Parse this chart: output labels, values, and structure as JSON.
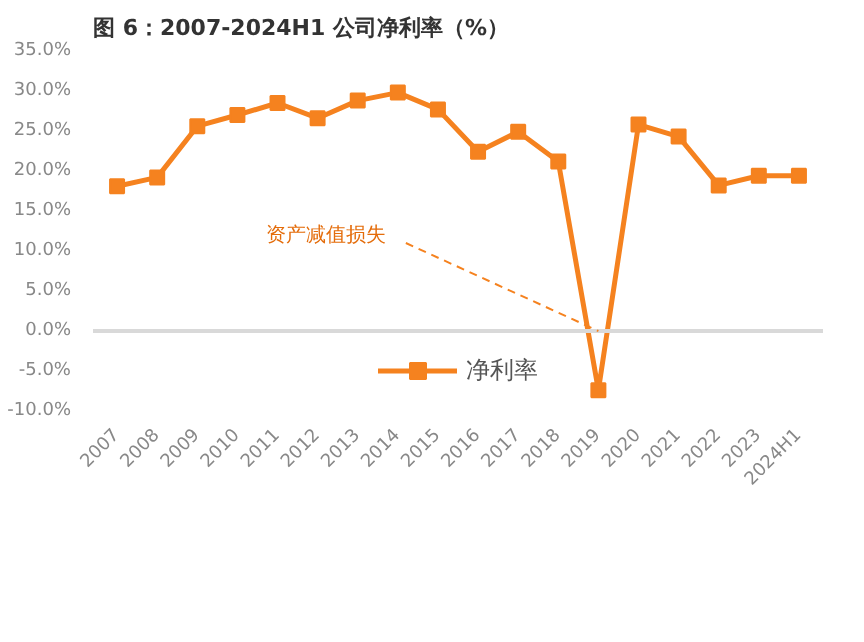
{
  "chart_data": {
    "type": "line",
    "title": "图 6：2007-2024H1 公司净利率（%）",
    "categories": [
      "2007",
      "2008",
      "2009",
      "2010",
      "2011",
      "2012",
      "2013",
      "2014",
      "2015",
      "2016",
      "2017",
      "2018",
      "2019",
      "2020",
      "2021",
      "2022",
      "2023",
      "2024H1"
    ],
    "series": [
      {
        "name": "净利率",
        "color": "#f5821f",
        "values": [
          18.1,
          19.2,
          25.6,
          27.0,
          28.5,
          26.6,
          28.8,
          29.8,
          27.7,
          22.4,
          24.9,
          21.2,
          -7.4,
          25.8,
          24.3,
          18.2,
          19.4,
          19.4
        ]
      }
    ],
    "ylim": [
      -10,
      35
    ],
    "yticks": [
      {
        "value": -10,
        "label": "-10.0%"
      },
      {
        "value": -5,
        "label": "-5.0%"
      },
      {
        "value": 0,
        "label": "0.0%"
      },
      {
        "value": 5,
        "label": "5.0%"
      },
      {
        "value": 10,
        "label": "10.0%"
      },
      {
        "value": 15,
        "label": "15.0%"
      },
      {
        "value": 20,
        "label": "20.0%"
      },
      {
        "value": 25,
        "label": "25.0%"
      },
      {
        "value": 30,
        "label": "30.0%"
      },
      {
        "value": 35,
        "label": "35.0%"
      }
    ],
    "annotations": [
      {
        "text": "资产减值损失",
        "x": "2019",
        "y": 0
      }
    ],
    "ref_lines": [
      {
        "axis": "y",
        "value": 0,
        "color": "#d9d9d9"
      }
    ],
    "grid": false,
    "legend": "bottom",
    "marker": "square",
    "line_style": "solid"
  }
}
